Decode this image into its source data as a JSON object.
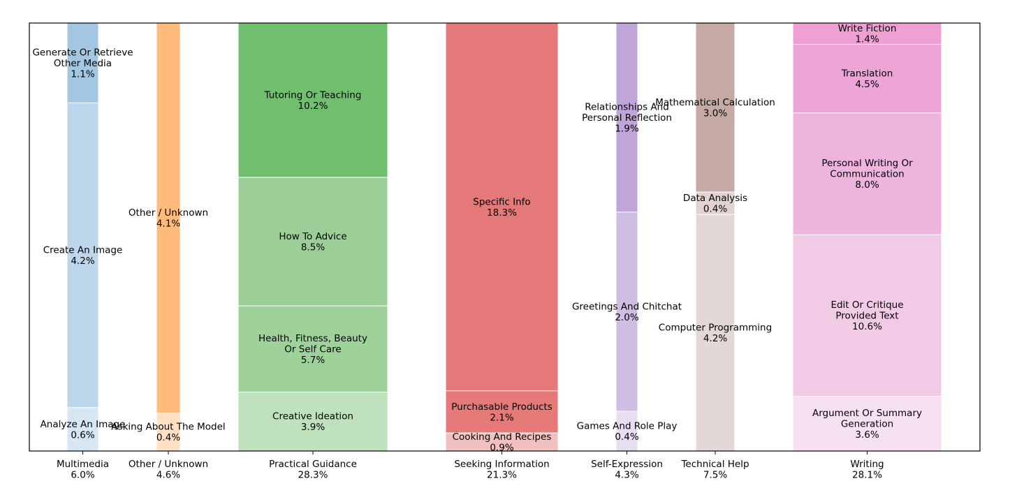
{
  "chart_data": {
    "type": "stacked-bar",
    "title": "",
    "xlabel": "",
    "ylabel": "",
    "ylim": [
      0,
      100
    ],
    "grid": false,
    "categories": [
      {
        "name": "Multimedia",
        "total_label": "6.0%",
        "color": "#1f77b4",
        "segments": [
          {
            "label": "Analyze An Image",
            "value_label": "0.6%",
            "color": "#d6e6f2"
          },
          {
            "label": "Create An Image",
            "value_label": "4.2%",
            "color": "#bdd6ea"
          },
          {
            "label": "Generate Or Retrieve Other Media",
            "value_label": "1.1%",
            "color": "#a3c6e1"
          }
        ]
      },
      {
        "name": "Other / Unknown",
        "total_label": "4.6%",
        "color": "#ff7f0e",
        "segments": [
          {
            "label": "Asking About The Model",
            "value_label": "0.4%",
            "color": "#ffe0c5"
          },
          {
            "label": "Other / Unknown",
            "value_label": "4.1%",
            "color": "#ffbb7c"
          }
        ]
      },
      {
        "name": "Practical Guidance",
        "total_label": "28.3%",
        "color": "#2ca02c",
        "segments": [
          {
            "label": "Creative Ideation",
            "value_label": "3.9%",
            "color": "#bfe1bd"
          },
          {
            "label": "Health, Fitness, Beauty Or Self Care",
            "value_label": "5.7%",
            "color": "#9fd19b"
          },
          {
            "label": "How To Advice",
            "value_label": "8.5%",
            "color": "#9ccf97"
          },
          {
            "label": "Tutoring Or Teaching",
            "value_label": "10.2%",
            "color": "#70bf6f"
          }
        ]
      },
      {
        "name": "Seeking Information",
        "total_label": "21.3%",
        "color": "#d62728",
        "segments": [
          {
            "label": "Cooking And Recipes",
            "value_label": "0.9%",
            "color": "#f1c1c0"
          },
          {
            "label": "Purchasable Products",
            "value_label": "2.1%",
            "color": "#e57a79"
          },
          {
            "label": "Specific Info",
            "value_label": "18.3%",
            "color": "#e57878"
          }
        ]
      },
      {
        "name": "Self-Expression",
        "total_label": "4.3%",
        "color": "#9467bd",
        "segments": [
          {
            "label": "Games And Role Play",
            "value_label": "0.4%",
            "color": "#e8def1"
          },
          {
            "label": "Greetings And Chitchat",
            "value_label": "2.0%",
            "color": "#d0bde3"
          },
          {
            "label": "Relationships And Personal Reflection",
            "value_label": "1.9%",
            "color": "#bfa5d8"
          }
        ]
      },
      {
        "name": "Technical Help",
        "total_label": "7.5%",
        "color": "#8c564b",
        "segments": [
          {
            "label": "Computer Programming",
            "value_label": "4.2%",
            "color": "#e4d8d6"
          },
          {
            "label": "Data Analysis",
            "value_label": "0.4%",
            "color": "#e2d3d0"
          },
          {
            "label": "Mathematical Calculation",
            "value_label": "3.0%",
            "color": "#c4aaa3"
          }
        ]
      },
      {
        "name": "Writing",
        "total_label": "28.1%",
        "color": "#e377c2",
        "segments": [
          {
            "label": "Argument Or Summary Generation",
            "value_label": "3.6%",
            "color": "#f5e1f1"
          },
          {
            "label": "Edit Or Critique Provided Text",
            "value_label": "10.6%",
            "color": "#f1cbe6"
          },
          {
            "label": "Personal Writing Or Communication",
            "value_label": "8.0%",
            "color": "#eeb4dd"
          },
          {
            "label": "Translation",
            "value_label": "4.5%",
            "color": "#eda4d7"
          },
          {
            "label": "Write Fiction",
            "value_label": "1.4%",
            "color": "#eea0d3"
          }
        ]
      }
    ]
  }
}
